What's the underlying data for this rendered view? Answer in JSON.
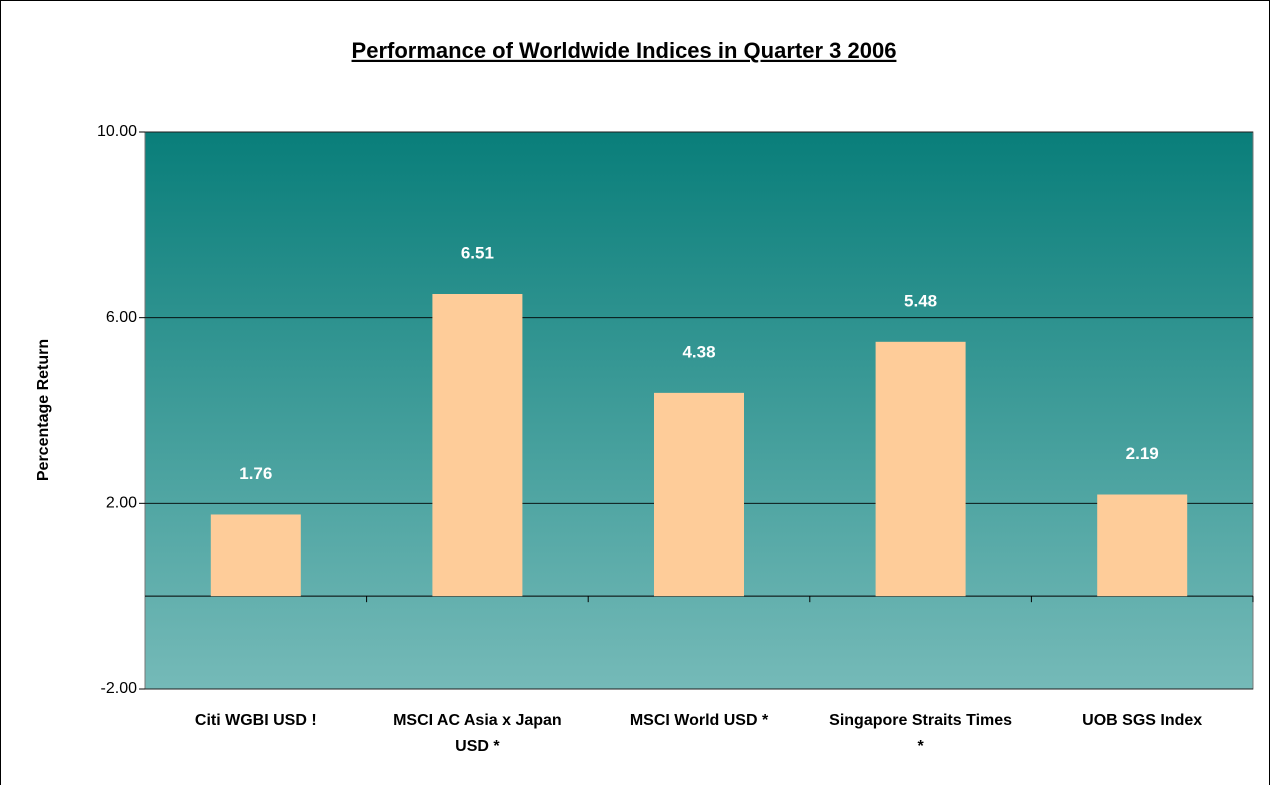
{
  "chart_data": {
    "type": "bar",
    "title": "Performance of Worldwide Indices in Quarter 3 2006",
    "y_label": "Percentage Return",
    "categories": [
      "Citi WGBI USD !",
      "MSCI AC Asia x Japan USD *",
      "MSCI World USD *",
      "Singapore Straits Times *",
      "UOB SGS Index"
    ],
    "values": [
      1.76,
      6.51,
      4.38,
      5.48,
      2.19
    ],
    "color": "#fecc99",
    "ylim": [
      -2,
      10
    ],
    "yticks": [
      {
        "value": -2,
        "label": "-2.00"
      },
      {
        "value": 2,
        "label": "2.00"
      },
      {
        "value": 6,
        "label": "6.00"
      },
      {
        "value": 10,
        "label": "10.00"
      }
    ],
    "grid": true
  }
}
